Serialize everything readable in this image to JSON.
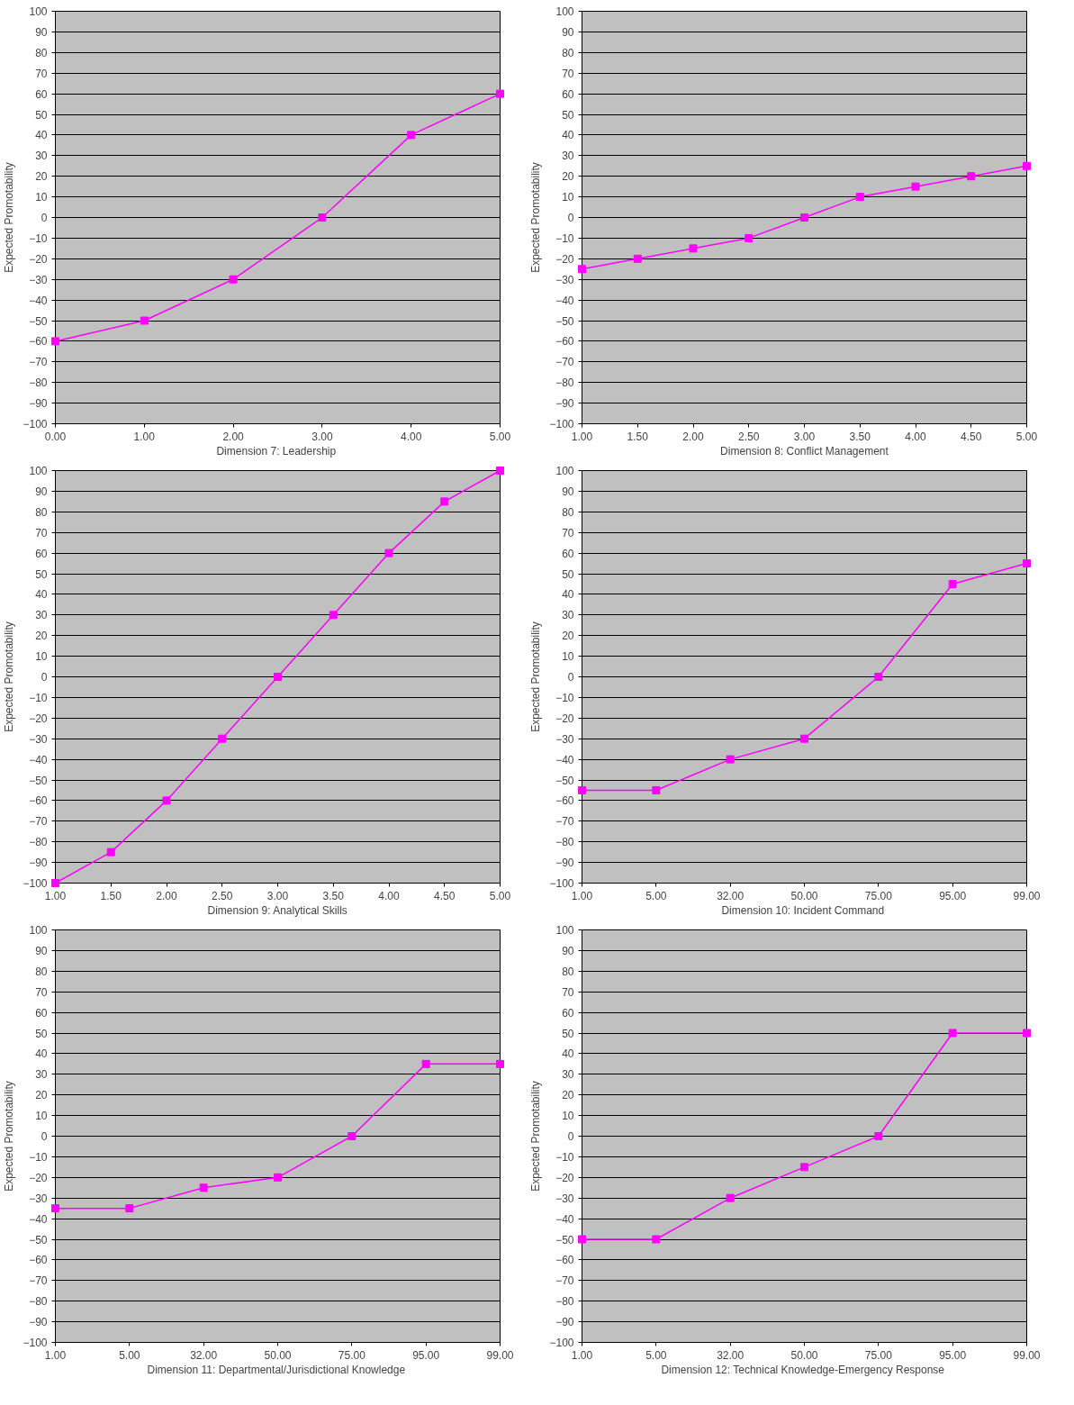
{
  "chart_data": [
    {
      "type": "line",
      "xlabel": "Dimension 7:  Leadership",
      "ylabel": "Expected Promotability",
      "x": [
        0,
        1,
        2,
        3,
        4,
        5
      ],
      "xlim": [
        0,
        5
      ],
      "xticks": [
        {
          "value": 0,
          "label": "0.00"
        },
        {
          "value": 1,
          "label": "1.00"
        },
        {
          "value": 2,
          "label": "2.00"
        },
        {
          "value": 3,
          "label": "3.00"
        },
        {
          "value": 4,
          "label": "4.00"
        },
        {
          "value": 5,
          "label": "5.00"
        }
      ],
      "ylim": [
        -100,
        100
      ],
      "yticks": [
        -100,
        -90,
        -80,
        -70,
        -60,
        -50,
        -40,
        -30,
        -20,
        -10,
        0,
        10,
        20,
        30,
        40,
        50,
        60,
        70,
        80,
        90,
        100
      ],
      "grid": "y",
      "marker": "square",
      "series": [
        {
          "color": "#ff00ff",
          "values": [
            -60,
            -50,
            -30,
            0,
            40,
            60
          ]
        }
      ]
    },
    {
      "type": "line",
      "xlabel": "Dimension 8: Conflict Management",
      "ylabel": "Expected Promotability",
      "x": [
        1,
        1.5,
        2,
        2.5,
        3,
        3.5,
        4,
        4.5,
        5
      ],
      "xlim": [
        1,
        5
      ],
      "xticks": [
        {
          "value": 1,
          "label": "1.00"
        },
        {
          "value": 1.5,
          "label": "1.50"
        },
        {
          "value": 2,
          "label": "2.00"
        },
        {
          "value": 2.5,
          "label": "2.50"
        },
        {
          "value": 3,
          "label": "3.00"
        },
        {
          "value": 3.5,
          "label": "3.50"
        },
        {
          "value": 4,
          "label": "4.00"
        },
        {
          "value": 4.5,
          "label": "4.50"
        },
        {
          "value": 5,
          "label": "5.00"
        }
      ],
      "ylim": [
        -100,
        100
      ],
      "yticks": [
        -100,
        -90,
        -80,
        -70,
        -60,
        -50,
        -40,
        -30,
        -20,
        -10,
        0,
        10,
        20,
        30,
        40,
        50,
        60,
        70,
        80,
        90,
        100
      ],
      "grid": "y",
      "marker": "square",
      "series": [
        {
          "color": "#ff00ff",
          "values": [
            -25,
            -20,
            -15,
            -10,
            0,
            10,
            15,
            20,
            25
          ]
        }
      ]
    },
    {
      "type": "line",
      "xlabel": "Dimension 9: Analytical Skills",
      "ylabel": "Expected Promotability",
      "x": [
        1,
        1.5,
        2,
        2.5,
        3,
        3.5,
        4,
        4.5,
        5
      ],
      "xlim": [
        1,
        5
      ],
      "xticks": [
        {
          "value": 1,
          "label": "1.00"
        },
        {
          "value": 1.5,
          "label": "1.50"
        },
        {
          "value": 2,
          "label": "2.00"
        },
        {
          "value": 2.5,
          "label": "2.50"
        },
        {
          "value": 3,
          "label": "3.00"
        },
        {
          "value": 3.5,
          "label": "3.50"
        },
        {
          "value": 4,
          "label": "4.00"
        },
        {
          "value": 4.5,
          "label": "4.50"
        },
        {
          "value": 5,
          "label": "5.00"
        }
      ],
      "ylim": [
        -100,
        100
      ],
      "yticks": [
        -100,
        -90,
        -80,
        -70,
        -60,
        -50,
        -40,
        -30,
        -20,
        -10,
        0,
        10,
        20,
        30,
        40,
        50,
        60,
        70,
        80,
        90,
        100
      ],
      "grid": "y",
      "marker": "square",
      "series": [
        {
          "color": "#ff00ff",
          "values": [
            -100,
            -85,
            -60,
            -30,
            0,
            30,
            60,
            85,
            100
          ]
        }
      ]
    },
    {
      "type": "line",
      "xlabel": "Dimension 10:  Incident Command",
      "ylabel": "Expected Promotability",
      "categories": [
        "1.00",
        "5.00",
        "32.00",
        "50.00",
        "75.00",
        "95.00",
        "99.00"
      ],
      "ylim": [
        -100,
        100
      ],
      "yticks": [
        -100,
        -90,
        -80,
        -70,
        -60,
        -50,
        -40,
        -30,
        -20,
        -10,
        0,
        10,
        20,
        30,
        40,
        50,
        60,
        70,
        80,
        90,
        100
      ],
      "grid": "y",
      "marker": "square",
      "series": [
        {
          "color": "#ff00ff",
          "values": [
            -55,
            -55,
            -40,
            -30,
            0,
            45,
            55
          ]
        }
      ]
    },
    {
      "type": "line",
      "xlabel": "Dimension 11:  Departmental/Jurisdictional Knowledge",
      "ylabel": "Expected Promotability",
      "categories": [
        "1.00",
        "5.00",
        "32.00",
        "50.00",
        "75.00",
        "95.00",
        "99.00"
      ],
      "ylim": [
        -100,
        100
      ],
      "yticks": [
        -100,
        -90,
        -80,
        -70,
        -60,
        -50,
        -40,
        -30,
        -20,
        -10,
        0,
        10,
        20,
        30,
        40,
        50,
        60,
        70,
        80,
        90,
        100
      ],
      "grid": "y",
      "marker": "square",
      "series": [
        {
          "color": "#ff00ff",
          "values": [
            -35,
            -35,
            -25,
            -20,
            0,
            35,
            35
          ]
        }
      ]
    },
    {
      "type": "line",
      "xlabel": "Dimension 12:  Technical Knowledge-Emergency Response",
      "ylabel": "Expected Promotability",
      "categories": [
        "1.00",
        "5.00",
        "32.00",
        "50.00",
        "75.00",
        "95.00",
        "99.00"
      ],
      "ylim": [
        -100,
        100
      ],
      "yticks": [
        -100,
        -90,
        -80,
        -70,
        -60,
        -50,
        -40,
        -30,
        -20,
        -10,
        0,
        10,
        20,
        30,
        40,
        50,
        60,
        70,
        80,
        90,
        100
      ],
      "grid": "y",
      "marker": "square",
      "series": [
        {
          "color": "#ff00ff",
          "values": [
            -50,
            -50,
            -30,
            -15,
            0,
            50,
            50
          ]
        }
      ]
    }
  ]
}
